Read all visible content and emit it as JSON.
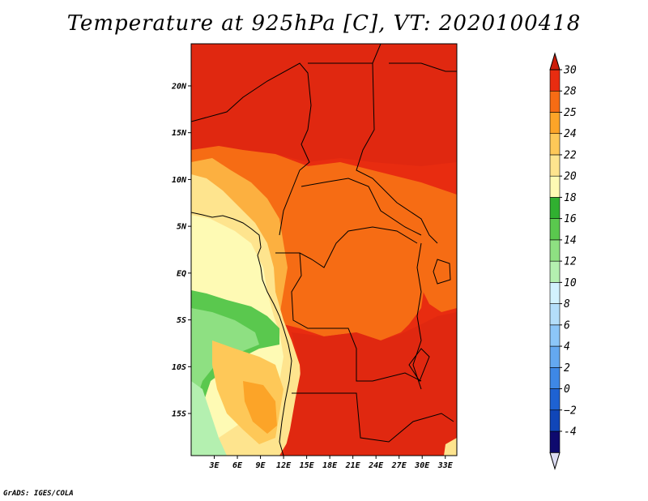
{
  "title": "Temperature at 925hPa [C], VT: 2020100418",
  "credit": "GrADS: IGES/COLA",
  "chart_data": {
    "type": "heatmap",
    "title": "Temperature at 925hPa [C], VT: 2020100418",
    "variable": "Temperature",
    "level": "925hPa",
    "units": "C",
    "valid_time": "2020100418",
    "xlim": [
      0,
      34.5
    ],
    "ylim": [
      -19.5,
      24.5
    ],
    "x_ticks": [
      {
        "value": 3,
        "label": "3E"
      },
      {
        "value": 6,
        "label": "6E"
      },
      {
        "value": 9,
        "label": "9E"
      },
      {
        "value": 12,
        "label": "12E"
      },
      {
        "value": 15,
        "label": "15E"
      },
      {
        "value": 18,
        "label": "18E"
      },
      {
        "value": 21,
        "label": "21E"
      },
      {
        "value": 24,
        "label": "24E"
      },
      {
        "value": 27,
        "label": "27E"
      },
      {
        "value": 30,
        "label": "30E"
      },
      {
        "value": 33,
        "label": "33E"
      }
    ],
    "y_ticks": [
      {
        "value": 20,
        "label": "20N"
      },
      {
        "value": 15,
        "label": "15N"
      },
      {
        "value": 10,
        "label": "10N"
      },
      {
        "value": 5,
        "label": "5N"
      },
      {
        "value": 0,
        "label": "EQ"
      },
      {
        "value": -5,
        "label": "5S"
      },
      {
        "value": -10,
        "label": "10S"
      },
      {
        "value": -15,
        "label": "15S"
      }
    ],
    "colorbar": {
      "levels": [
        {
          "value": -4,
          "label": "-4"
        },
        {
          "value": -2,
          "label": "−2"
        },
        {
          "value": 0,
          "label": "0"
        },
        {
          "value": 2,
          "label": "2"
        },
        {
          "value": 4,
          "label": "4"
        },
        {
          "value": 6,
          "label": "6"
        },
        {
          "value": 8,
          "label": "8"
        },
        {
          "value": 10,
          "label": "10"
        },
        {
          "value": 12,
          "label": "12"
        },
        {
          "value": 14,
          "label": "14"
        },
        {
          "value": 16,
          "label": "16"
        },
        {
          "value": 18,
          "label": "18"
        },
        {
          "value": 20,
          "label": "20"
        },
        {
          "value": 22,
          "label": "22"
        },
        {
          "value": 24,
          "label": "24"
        },
        {
          "value": 25,
          "label": "25"
        },
        {
          "value": 28,
          "label": "28"
        },
        {
          "value": 30,
          "label": "30"
        }
      ],
      "colors": [
        "#0e0a6e",
        "#1046b8",
        "#1e62d2",
        "#3e88e6",
        "#64a8f0",
        "#8cc6f8",
        "#b4defa",
        "#d2f2fe",
        "#b4f0b0",
        "#8ee082",
        "#5ac84e",
        "#30b030",
        "#fefab4",
        "#fee48e",
        "#fec858",
        "#fca428",
        "#f66c14",
        "#e82c10",
        "#cc1c0a"
      ],
      "under_color": "#dcdcf2",
      "over_color": "#cc1c0a"
    }
  }
}
